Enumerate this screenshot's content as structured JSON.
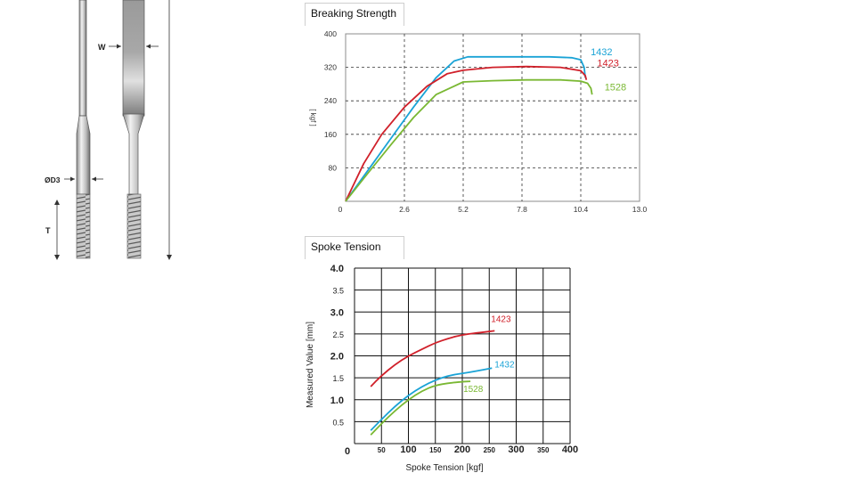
{
  "spoke_diagram": {
    "labels": {
      "width": "W",
      "diameter": "ØD3",
      "thread": "T"
    }
  },
  "chart_data": [
    {
      "type": "line",
      "title": "Breaking Strength",
      "xlabel": "",
      "ylabel": "[ kgf ]",
      "xlim": [
        0,
        13.0
      ],
      "ylim": [
        0,
        400
      ],
      "x_ticks": [
        0,
        2.6,
        5.2,
        7.8,
        10.4,
        13.0
      ],
      "x_tick_labels": [
        "0",
        "2.6",
        "5.2",
        "7.8",
        "10.4",
        "13.0"
      ],
      "y_ticks": [
        80,
        160,
        240,
        320,
        400
      ],
      "y_tick_labels": [
        "80",
        "160",
        "240",
        "320",
        "400"
      ],
      "grid": true,
      "series": [
        {
          "name": "1432",
          "color": "#1aa3d6",
          "points": [
            [
              0,
              0
            ],
            [
              1,
              75
            ],
            [
              2,
              150
            ],
            [
              3,
              225
            ],
            [
              4,
              295
            ],
            [
              4.8,
              335
            ],
            [
              5.4,
              345
            ],
            [
              7,
              345
            ],
            [
              9,
              345
            ],
            [
              10,
              343
            ],
            [
              10.4,
              338
            ],
            [
              10.55,
              320
            ],
            [
              10.6,
              295
            ]
          ]
        },
        {
          "name": "1423",
          "color": "#d0202a",
          "points": [
            [
              0,
              0
            ],
            [
              0.8,
              90
            ],
            [
              1.6,
              160
            ],
            [
              2.6,
              225
            ],
            [
              3.6,
              275
            ],
            [
              4.5,
              305
            ],
            [
              5.2,
              313
            ],
            [
              6.5,
              320
            ],
            [
              8,
              322
            ],
            [
              9.5,
              320
            ],
            [
              10.4,
              312
            ],
            [
              10.6,
              300
            ],
            [
              10.65,
              290
            ]
          ]
        },
        {
          "name": "1528",
          "color": "#7ab833",
          "points": [
            [
              0,
              0
            ],
            [
              1,
              68
            ],
            [
              2,
              135
            ],
            [
              3,
              200
            ],
            [
              4,
              255
            ],
            [
              5.2,
              285
            ],
            [
              6.5,
              288
            ],
            [
              8,
              290
            ],
            [
              9.5,
              290
            ],
            [
              10.4,
              287
            ],
            [
              10.7,
              282
            ],
            [
              10.85,
              270
            ],
            [
              10.9,
              255
            ]
          ]
        }
      ]
    },
    {
      "type": "line",
      "title": "Spoke Tension",
      "xlabel": "Spoke Tension [kgf]",
      "ylabel": "Measured Value [mm]",
      "xlim": [
        0,
        400
      ],
      "ylim": [
        0,
        4.0
      ],
      "x_tick_labels": [
        "0",
        "50",
        "100",
        "150",
        "200",
        "250",
        "300",
        "350",
        "400"
      ],
      "y_tick_labels": [
        "0.5",
        "1.0",
        "1.5",
        "2.0",
        "2.5",
        "3.0",
        "3.5",
        "4.0"
      ],
      "grid": true,
      "series": [
        {
          "name": "1423",
          "color": "#d0202a",
          "points": [
            [
              30,
              1.3
            ],
            [
              50,
              1.55
            ],
            [
              75,
              1.8
            ],
            [
              100,
              2.0
            ],
            [
              125,
              2.15
            ],
            [
              150,
              2.3
            ],
            [
              175,
              2.4
            ],
            [
              200,
              2.48
            ],
            [
              225,
              2.52
            ],
            [
              260,
              2.57
            ]
          ]
        },
        {
          "name": "1432",
          "color": "#1aa3d6",
          "points": [
            [
              30,
              0.3
            ],
            [
              50,
              0.55
            ],
            [
              75,
              0.85
            ],
            [
              100,
              1.1
            ],
            [
              125,
              1.3
            ],
            [
              150,
              1.45
            ],
            [
              175,
              1.55
            ],
            [
              200,
              1.6
            ],
            [
              225,
              1.65
            ],
            [
              255,
              1.72
            ]
          ]
        },
        {
          "name": "1528",
          "color": "#7ab833",
          "points": [
            [
              30,
              0.2
            ],
            [
              50,
              0.45
            ],
            [
              75,
              0.75
            ],
            [
              100,
              1.0
            ],
            [
              125,
              1.2
            ],
            [
              150,
              1.33
            ],
            [
              175,
              1.38
            ],
            [
              200,
              1.41
            ],
            [
              215,
              1.42
            ]
          ]
        }
      ]
    }
  ]
}
